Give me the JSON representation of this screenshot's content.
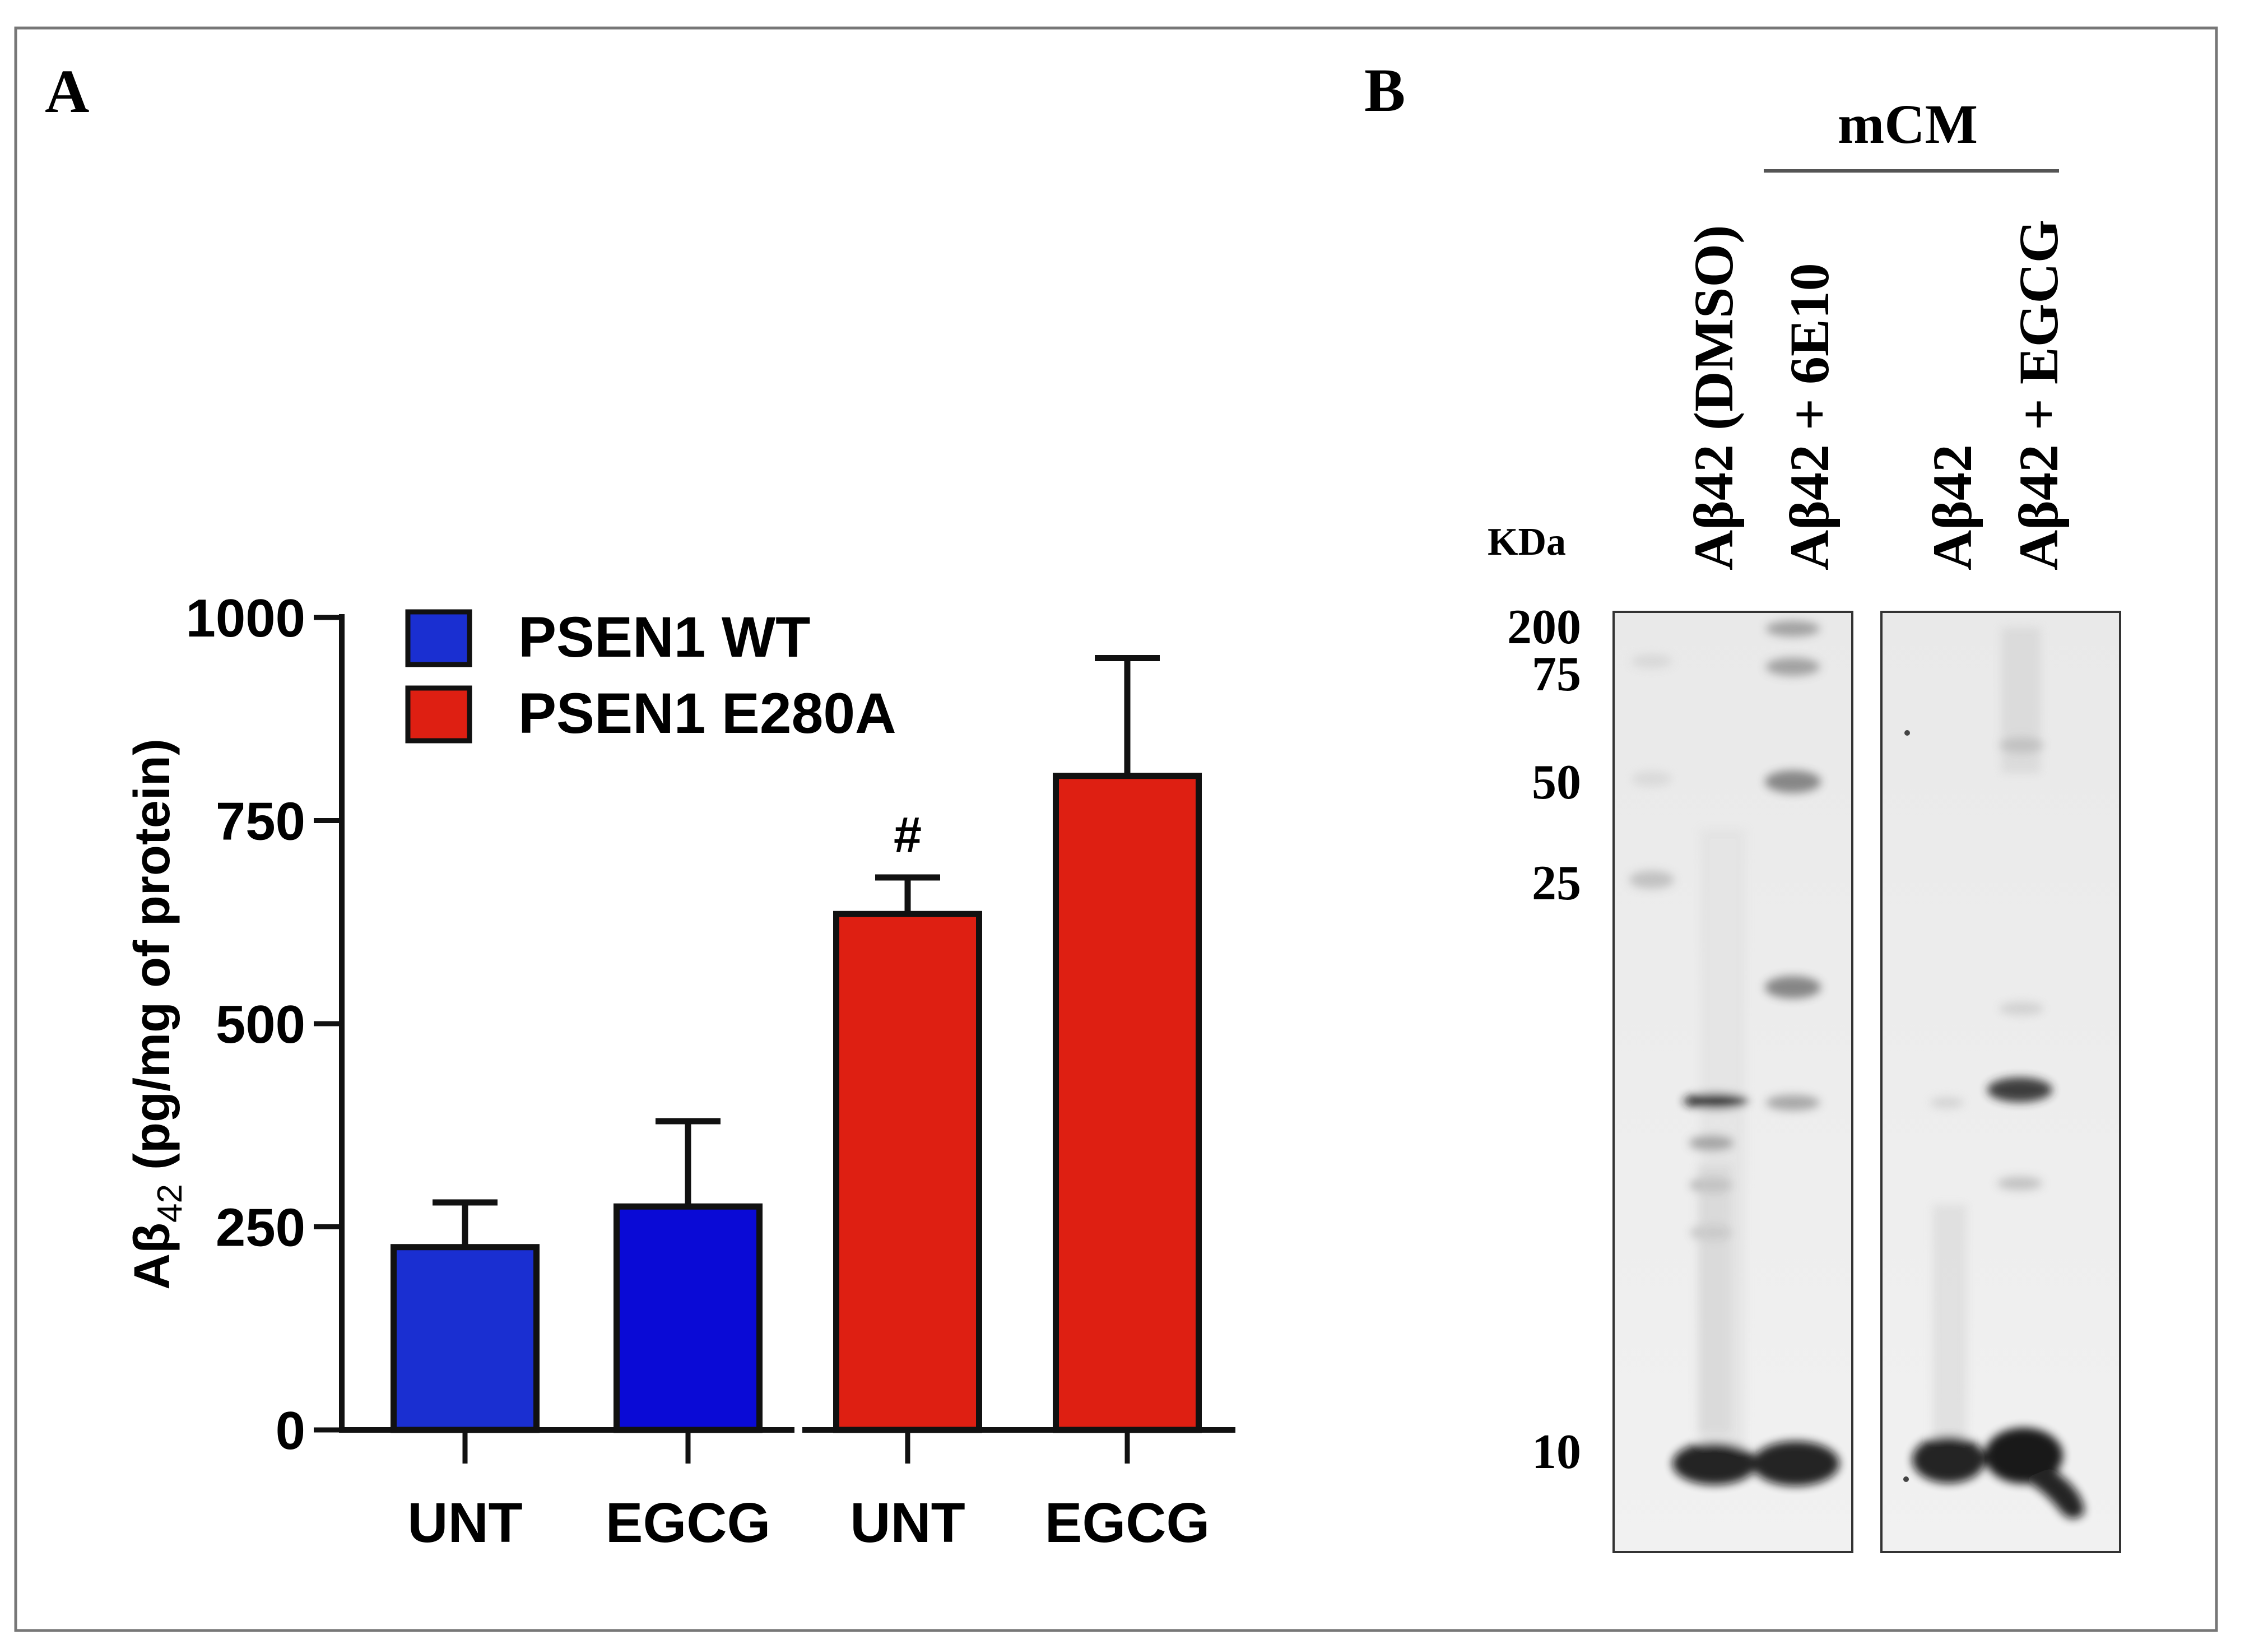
{
  "panels": {
    "a_label": "A",
    "b_label": "B"
  },
  "colors": {
    "wt": "#1a2fd1",
    "wt_egcg": "#0a0ad6",
    "e280a": "#de1f12",
    "frame": "#777777",
    "axis": "#111111"
  },
  "chart_data": {
    "type": "bar",
    "ylabel_main": "Aβ",
    "ylabel_sub": "42",
    "ylabel_rest": " (pg/mg of protein)",
    "ylim": [
      0,
      1000
    ],
    "yticks": [
      "0",
      "250",
      "500",
      "750",
      "1000"
    ],
    "categories": [
      "UNT",
      "EGCG",
      "UNT",
      "EGCG"
    ],
    "groups": [
      "PSEN1 WT",
      "PSEN1 WT",
      "PSEN1 E280A",
      "PSEN1 E280A"
    ],
    "values": [
      225,
      275,
      635,
      805
    ],
    "errors": [
      55,
      105,
      45,
      145
    ],
    "annotations": [
      "",
      "",
      "#",
      ""
    ],
    "legend": [
      {
        "label": "PSEN1 WT",
        "color": "#1a2fd1"
      },
      {
        "label": "PSEN1 E280A",
        "color": "#de1f12"
      }
    ],
    "legend_position": "top-left"
  },
  "blot": {
    "kda_label": "KDa",
    "markers": [
      "200",
      "75",
      "50",
      "25",
      "10"
    ],
    "mcm_label": "mCM",
    "lanes": [
      "Aβ42 (DMSO)",
      "Aβ42 + 6E10",
      "Aβ42",
      "Aβ42 + EGCG"
    ]
  }
}
